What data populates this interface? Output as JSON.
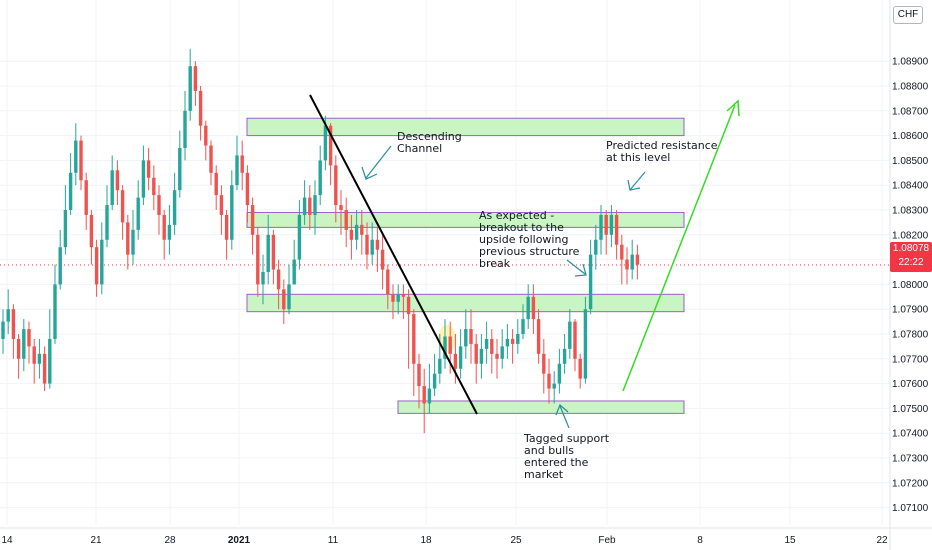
{
  "currency_button": "CHF",
  "price_tag": {
    "price": "1.08078",
    "countdown": "22:22"
  },
  "annotations": [
    {
      "id": "descending-channel",
      "text": "Descending\nChannel"
    },
    {
      "id": "predicted-resistance",
      "text": "Predicted resistance\nat this level"
    },
    {
      "id": "as-expected",
      "text": "As expected -\nbreakout to the\nupside following\nprevious structure\nbreak"
    },
    {
      "id": "tagged-support",
      "text": "Tagged support\nand bulls\nentered the\nmarket"
    }
  ],
  "chart_data": {
    "type": "candlestick",
    "y_axis": {
      "ylim": [
        1.0705,
        1.0905
      ],
      "ticks": [
        "1.08900",
        "1.08800",
        "1.08700",
        "1.08600",
        "1.08500",
        "1.08400",
        "1.08300",
        "1.08200",
        "1.08100",
        "1.08000",
        "1.07900",
        "1.07800",
        "1.07700",
        "1.07600",
        "1.07500",
        "1.07400",
        "1.07300",
        "1.07200",
        "1.07100"
      ]
    },
    "x_axis": {
      "ticks": [
        "14",
        "21",
        "28",
        "2021",
        "11",
        "18",
        "25",
        "Feb",
        "8",
        "15",
        "22"
      ]
    },
    "colors": {
      "up": "#26a69a",
      "down": "#ef5350",
      "zone_fill": "#c8f5c1",
      "zone_border": "#9c5fc9",
      "trend": "#000000",
      "arrow": "#33dd22",
      "callout": "#2a8da0"
    },
    "zones": [
      {
        "low": 1.086,
        "high": 1.0867
      },
      {
        "low": 1.0823,
        "high": 1.0829
      },
      {
        "low": 1.0789,
        "high": 1.0796
      },
      {
        "low": 1.0748,
        "high": 1.0753
      }
    ],
    "current_price": 1.08078,
    "series": {
      "close": [
        1.0785,
        1.079,
        1.0778,
        1.077,
        1.0782,
        1.0775,
        1.0768,
        1.0772,
        1.076,
        1.0778,
        1.08,
        1.0815,
        1.083,
        1.0845,
        1.0858,
        1.0842,
        1.0828,
        1.0815,
        1.08,
        1.0818,
        1.0832,
        1.0846,
        1.0838,
        1.0825,
        1.0812,
        1.0822,
        1.0835,
        1.085,
        1.0843,
        1.0836,
        1.0828,
        1.0818,
        1.0824,
        1.0838,
        1.0855,
        1.087,
        1.0888,
        1.0878,
        1.0864,
        1.0856,
        1.0845,
        1.0836,
        1.0828,
        1.0818,
        1.084,
        1.0852,
        1.0845,
        1.0832,
        1.082,
        1.08,
        1.0805,
        1.082,
        1.0806,
        1.0798,
        1.079,
        1.08,
        1.081,
        1.0828,
        1.0835,
        1.0828,
        1.0836,
        1.085,
        1.0864,
        1.0848,
        1.0832,
        1.083,
        1.0822,
        1.0818,
        1.0824,
        1.082,
        1.0812,
        1.0818,
        1.0814,
        1.0806,
        1.0796,
        1.0793,
        1.0796,
        1.0795,
        1.0788,
        1.0768,
        1.0759,
        1.0752,
        1.0758,
        1.0764,
        1.077,
        1.0779,
        1.0772,
        1.0766,
        1.0775,
        1.0782,
        1.0776,
        1.0768,
        1.0774,
        1.0778,
        1.0772,
        1.077,
        1.0775,
        1.0778,
        1.0776,
        1.078,
        1.0786,
        1.0795,
        1.0786,
        1.0772,
        1.0764,
        1.0758,
        1.076,
        1.0768,
        1.0774,
        1.0785,
        1.077,
        1.0762,
        1.079,
        1.0812,
        1.0818,
        1.0828,
        1.082,
        1.0828,
        1.0816,
        1.081,
        1.0806,
        1.0812,
        1.0808
      ],
      "high": [
        1.079,
        1.0798,
        1.0792,
        1.078,
        1.0786,
        1.0785,
        1.0778,
        1.0778,
        1.0775,
        1.079,
        1.0808,
        1.0822,
        1.084,
        1.0853,
        1.0865,
        1.086,
        1.0845,
        1.083,
        1.0818,
        1.0825,
        1.084,
        1.0852,
        1.085,
        1.084,
        1.0828,
        1.083,
        1.0842,
        1.0856,
        1.0855,
        1.0848,
        1.084,
        1.083,
        1.0832,
        1.0845,
        1.0862,
        1.0878,
        1.0895,
        1.089,
        1.088,
        1.0866,
        1.0858,
        1.0848,
        1.084,
        1.083,
        1.0846,
        1.086,
        1.0858,
        1.0848,
        1.0835,
        1.0823,
        1.0812,
        1.0828,
        1.0822,
        1.081,
        1.0802,
        1.0808,
        1.0818,
        1.0834,
        1.0842,
        1.084,
        1.0842,
        1.0856,
        1.0868,
        1.0865,
        1.0852,
        1.0838,
        1.0835,
        1.0828,
        1.083,
        1.083,
        1.0825,
        1.0825,
        1.0823,
        1.082,
        1.0808,
        1.08,
        1.08,
        1.08,
        1.0798,
        1.079,
        1.0772,
        1.0766,
        1.0768,
        1.0772,
        1.078,
        1.0786,
        1.0785,
        1.078,
        1.0782,
        1.079,
        1.079,
        1.078,
        1.078,
        1.0785,
        1.0782,
        1.0778,
        1.0782,
        1.0784,
        1.0782,
        1.0786,
        1.0792,
        1.08,
        1.08,
        1.079,
        1.0778,
        1.077,
        1.0765,
        1.0774,
        1.078,
        1.079,
        1.0786,
        1.0772,
        1.0795,
        1.0818,
        1.0824,
        1.0832,
        1.083,
        1.0832,
        1.083,
        1.082,
        1.0815,
        1.0818,
        1.0816
      ],
      "low": [
        1.0772,
        1.078,
        1.077,
        1.0762,
        1.0765,
        1.0768,
        1.076,
        1.0762,
        1.0757,
        1.0758,
        1.0776,
        1.0798,
        1.0812,
        1.0828,
        1.084,
        1.0838,
        1.0822,
        1.0808,
        1.0795,
        1.0796,
        1.0815,
        1.083,
        1.0832,
        1.0818,
        1.0806,
        1.0808,
        1.0818,
        1.0832,
        1.0838,
        1.083,
        1.082,
        1.081,
        1.0812,
        1.082,
        1.0835,
        1.085,
        1.0866,
        1.0872,
        1.0858,
        1.085,
        1.084,
        1.083,
        1.082,
        1.081,
        1.0814,
        1.0838,
        1.0838,
        1.0825,
        1.0812,
        1.0795,
        1.0792,
        1.08,
        1.08,
        1.079,
        1.0784,
        1.0788,
        1.08,
        1.0806,
        1.0824,
        1.0822,
        1.082,
        1.0832,
        1.0846,
        1.084,
        1.0825,
        1.082,
        1.0815,
        1.081,
        1.0814,
        1.0812,
        1.0806,
        1.0808,
        1.0805,
        1.0798,
        1.079,
        1.0786,
        1.0788,
        1.0786,
        1.0766,
        1.0755,
        1.075,
        1.074,
        1.0748,
        1.0755,
        1.076,
        1.0766,
        1.0764,
        1.076,
        1.0762,
        1.077,
        1.0768,
        1.076,
        1.0762,
        1.0768,
        1.0764,
        1.0762,
        1.0766,
        1.077,
        1.0768,
        1.0772,
        1.0778,
        1.0782,
        1.078,
        1.0768,
        1.0756,
        1.0752,
        1.0752,
        1.0756,
        1.0764,
        1.077,
        1.0765,
        1.0758,
        1.076,
        1.0788,
        1.0806,
        1.0812,
        1.0812,
        1.0815,
        1.081,
        1.08,
        1.08,
        1.0802,
        1.0802
      ],
      "open": [
        1.0778,
        1.0785,
        1.079,
        1.0778,
        1.077,
        1.0782,
        1.0775,
        1.0768,
        1.0772,
        1.076,
        1.0778,
        1.08,
        1.0815,
        1.083,
        1.0845,
        1.0858,
        1.0842,
        1.0828,
        1.0815,
        1.08,
        1.0818,
        1.0832,
        1.0846,
        1.0838,
        1.0825,
        1.0812,
        1.0822,
        1.0835,
        1.085,
        1.0843,
        1.0836,
        1.0828,
        1.0818,
        1.0824,
        1.0838,
        1.0855,
        1.087,
        1.0888,
        1.0878,
        1.0864,
        1.0856,
        1.0845,
        1.0836,
        1.0828,
        1.0818,
        1.084,
        1.0852,
        1.0845,
        1.0832,
        1.082,
        1.08,
        1.0805,
        1.082,
        1.0806,
        1.0798,
        1.079,
        1.08,
        1.081,
        1.0828,
        1.0835,
        1.0828,
        1.0836,
        1.085,
        1.0864,
        1.0848,
        1.0832,
        1.083,
        1.0822,
        1.0818,
        1.0824,
        1.082,
        1.0812,
        1.0818,
        1.0814,
        1.0806,
        1.0796,
        1.0793,
        1.0796,
        1.0795,
        1.0788,
        1.0768,
        1.0759,
        1.0752,
        1.0758,
        1.0764,
        1.077,
        1.0779,
        1.0772,
        1.0766,
        1.0775,
        1.0782,
        1.0776,
        1.0768,
        1.0774,
        1.0778,
        1.0772,
        1.077,
        1.0775,
        1.0778,
        1.0776,
        1.078,
        1.0786,
        1.0795,
        1.0786,
        1.0772,
        1.0764,
        1.0758,
        1.076,
        1.0768,
        1.0774,
        1.0785,
        1.077,
        1.0762,
        1.079,
        1.0812,
        1.0818,
        1.0828,
        1.082,
        1.0828,
        1.0816,
        1.081,
        1.0806,
        1.0812
      ]
    }
  }
}
